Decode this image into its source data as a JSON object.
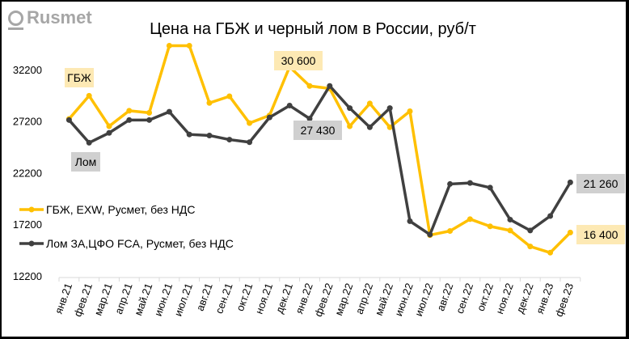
{
  "logo": {
    "text": "Rusmet"
  },
  "chart_data": {
    "type": "line",
    "title": "Цена на ГБЖ и черный лом в России, руб/т",
    "categories": [
      "янв.21",
      "фев.21",
      "мар.21",
      "апр.21",
      "май.21",
      "июн.21",
      "июл.21",
      "авг.21",
      "сен.21",
      "окт.21",
      "ноя.21",
      "дек.21",
      "янв.22",
      "фев.22",
      "мар.22",
      "апр.22",
      "май.22",
      "июн.22",
      "июл.22",
      "авг.22",
      "сен.22",
      "окт.22",
      "ноя.22",
      "дек.22",
      "янв.23",
      "фев.23"
    ],
    "yticks": [
      "32200",
      "27200",
      "22200",
      "17200",
      "12200"
    ],
    "ytick_values": [
      32200,
      27200,
      22200,
      17200,
      12200
    ],
    "ylim": [
      12200,
      35000
    ],
    "grid": false,
    "legend_position": "left-center",
    "series": [
      {
        "name": "ГБЖ, EXW, Русмет, без НДС",
        "color": "#ffc000",
        "values": [
          27400,
          29650,
          26700,
          28200,
          28000,
          34500,
          34500,
          28950,
          29600,
          27000,
          27750,
          32450,
          30600,
          30350,
          26700,
          28900,
          26600,
          28150,
          16150,
          16550,
          17700,
          17000,
          16600,
          15050,
          14450,
          16400
        ]
      },
      {
        "name": "Лом ЗА,ЦФО FCA, Русмет, без НДС",
        "color": "#404040",
        "values": [
          27300,
          25100,
          26050,
          27300,
          27300,
          28100,
          25900,
          25800,
          25400,
          25150,
          27550,
          28700,
          27430,
          30600,
          28450,
          26600,
          28450,
          17500,
          16200,
          21100,
          21200,
          20750,
          17650,
          16600,
          18000,
          21260
        ]
      }
    ],
    "annotations": [
      {
        "text": "ГБЖ",
        "series": 0,
        "index": 1,
        "bg": "#fde9b4"
      },
      {
        "text": "Лом",
        "series": 1,
        "index": 1,
        "bg": "#d0d0d0"
      },
      {
        "text": "30 600",
        "series": 0,
        "index": 12,
        "bg": "#fde9b4"
      },
      {
        "text": "27 430",
        "series": 1,
        "index": 12,
        "bg": "#d0d0d0"
      },
      {
        "text": "21 260",
        "series": 1,
        "index": 25,
        "bg": "#d0d0d0"
      },
      {
        "text": "16 400",
        "series": 0,
        "index": 25,
        "bg": "#fde9b4"
      }
    ]
  }
}
